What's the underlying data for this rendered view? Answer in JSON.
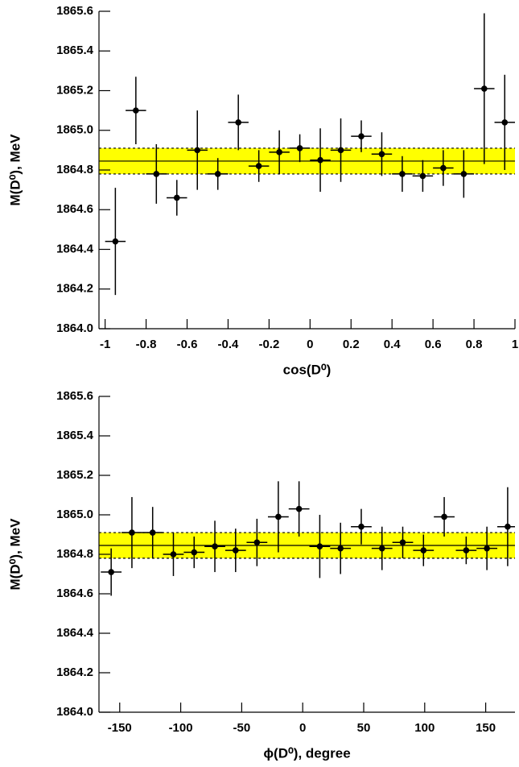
{
  "chart_data": [
    {
      "type": "scatter",
      "x_label": "cos(D⁰)",
      "y_label": "M(D⁰), MeV",
      "x": [
        -0.95,
        -0.85,
        -0.75,
        -0.65,
        -0.55,
        -0.45,
        -0.35,
        -0.25,
        -0.15,
        -0.05,
        0.05,
        0.15,
        0.25,
        0.35,
        0.45,
        0.55,
        0.65,
        0.75,
        0.85,
        0.95
      ],
      "xerr": [
        0.05,
        0.05,
        0.05,
        0.05,
        0.05,
        0.05,
        0.05,
        0.05,
        0.05,
        0.05,
        0.05,
        0.05,
        0.05,
        0.05,
        0.05,
        0.05,
        0.05,
        0.05,
        0.05,
        0.05
      ],
      "values": [
        1864.44,
        1865.1,
        1864.78,
        1864.66,
        1864.9,
        1864.78,
        1865.04,
        1864.82,
        1864.89,
        1864.91,
        1864.85,
        1864.9,
        1864.97,
        1864.88,
        1864.78,
        1864.77,
        1864.81,
        1864.78,
        1865.21,
        1865.04
      ],
      "yerr": [
        0.27,
        0.17,
        0.15,
        0.09,
        0.2,
        0.08,
        0.14,
        0.08,
        0.11,
        0.07,
        0.16,
        0.16,
        0.08,
        0.11,
        0.09,
        0.08,
        0.09,
        0.12,
        0.38,
        0.24
      ],
      "color": "#000000",
      "band": [
        1864.78,
        1864.91
      ],
      "band_center": 1864.845,
      "band_color": "#ffff00",
      "xlim": [
        -1.03,
        1.0
      ],
      "ylim": [
        1864.0,
        1865.6
      ],
      "xticks": [
        -1,
        -0.8,
        -0.6,
        -0.4,
        -0.2,
        0,
        0.2,
        0.4,
        0.6,
        0.8,
        1
      ],
      "yticks": [
        {
          "value": 1864.0,
          "label": "1864.0"
        },
        1864.2,
        1864.4,
        1864.6,
        1864.8,
        {
          "value": 1865.0,
          "label": "1865.0"
        },
        1865.2,
        1865.4,
        1865.6
      ]
    },
    {
      "type": "scatter",
      "x_label": "ϕ(D⁰), degree",
      "y_label": "M(D⁰), MeV",
      "x": [
        -157,
        -140,
        -123,
        -106,
        -89,
        -72,
        -55,
        -37.5,
        -20,
        -3,
        14,
        31,
        48,
        65,
        82,
        99,
        116,
        134,
        151,
        168
      ],
      "xerr": [
        8.5,
        8.5,
        8.5,
        8.5,
        8.5,
        8.5,
        8.5,
        8.5,
        8.5,
        8.5,
        8.5,
        8.5,
        8.5,
        8.5,
        8.5,
        8.5,
        8.5,
        8.5,
        8.5,
        8.5
      ],
      "values": [
        1864.71,
        1864.91,
        1864.91,
        1864.8,
        1864.81,
        1864.84,
        1864.82,
        1864.86,
        1864.99,
        1865.03,
        1864.84,
        1864.83,
        1864.94,
        1864.83,
        1864.86,
        1864.82,
        1864.99,
        1864.82,
        1864.83,
        1864.94
      ],
      "yerr": [
        0.12,
        0.18,
        0.13,
        0.11,
        0.08,
        0.13,
        0.11,
        0.12,
        0.18,
        0.14,
        0.16,
        0.13,
        0.09,
        0.11,
        0.08,
        0.08,
        0.1,
        0.07,
        0.11,
        0.2
      ],
      "color": "#000000",
      "band": [
        1864.78,
        1864.91
      ],
      "band_center": 1864.845,
      "band_color": "#ffff00",
      "xlim": [
        -167,
        174
      ],
      "ylim": [
        1864.0,
        1865.6
      ],
      "xticks": [
        -150,
        -100,
        -50,
        0,
        50,
        100,
        150
      ],
      "yticks": [
        {
          "value": 1864.0,
          "label": "1864.0"
        },
        1864.2,
        1864.4,
        1864.6,
        1864.8,
        {
          "value": 1865.0,
          "label": "1865.0"
        },
        1865.2,
        1865.4,
        1865.6
      ]
    }
  ]
}
